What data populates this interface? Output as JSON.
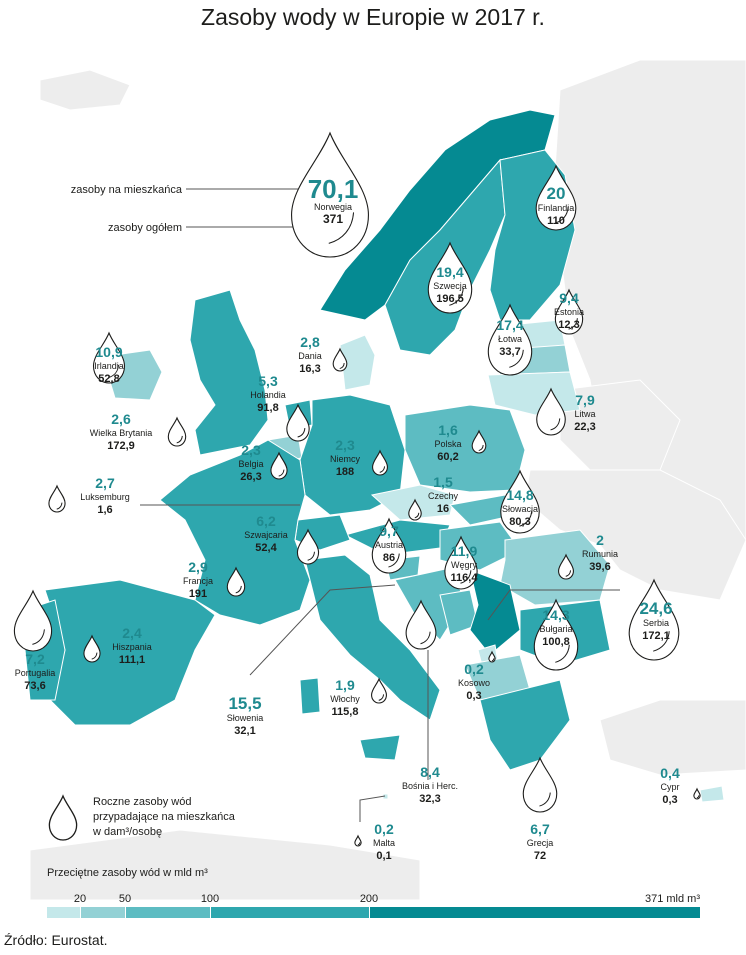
{
  "title": "Zasoby wody w Europie w 2017 r.",
  "source": "Źródło: Eurostat.",
  "colors": {
    "c1": "#c4e8ea",
    "c2": "#93d1d5",
    "c3": "#5dbcc2",
    "c4": "#2ea7ae",
    "c5": "#058a92",
    "land_gray": "#ededed",
    "number": "#1f8a8f"
  },
  "annotations": {
    "per_capita": "zasoby na mieszkańca",
    "total": "zasoby ogółem"
  },
  "legend": {
    "drop_text": [
      "Roczne zasoby wód",
      "przypadające na mieszkańca",
      "w dam³/osobę"
    ],
    "scale_title": "Przeciętne zasoby wód w mld m³",
    "ticks": [
      "20",
      "50",
      "100",
      "200",
      "371 mld m³"
    ]
  },
  "countries": [
    {
      "name": "Norwegia",
      "per_capita": "70,1",
      "total": "371"
    },
    {
      "name": "Finlandia",
      "per_capita": "20",
      "total": "110"
    },
    {
      "name": "Szwecja",
      "per_capita": "19,4",
      "total": "196,5"
    },
    {
      "name": "Estonia",
      "per_capita": "9,4",
      "total": "12,3"
    },
    {
      "name": "Łotwa",
      "per_capita": "17,4",
      "total": "33,7"
    },
    {
      "name": "Irlandia",
      "per_capita": "10,9",
      "total": "52,8"
    },
    {
      "name": "Dania",
      "per_capita": "2,8",
      "total": "16,3"
    },
    {
      "name": "Litwa",
      "per_capita": "7,9",
      "total": "22,3"
    },
    {
      "name": "Holandia",
      "per_capita": "5,3",
      "total": "91,8"
    },
    {
      "name": "Wielka Brytania",
      "per_capita": "2,6",
      "total": "172,9"
    },
    {
      "name": "Polska",
      "per_capita": "1,6",
      "total": "60,2"
    },
    {
      "name": "Belgia",
      "per_capita": "2,3",
      "total": "26,3"
    },
    {
      "name": "Niemcy",
      "per_capita": "2,3",
      "total": "188"
    },
    {
      "name": "Luksemburg",
      "per_capita": "2,7",
      "total": "1,6"
    },
    {
      "name": "Czechy",
      "per_capita": "1,5",
      "total": "16"
    },
    {
      "name": "Słowacja",
      "per_capita": "14,8",
      "total": "80,3"
    },
    {
      "name": "Szwajcaria",
      "per_capita": "6,2",
      "total": "52,4"
    },
    {
      "name": "Austria",
      "per_capita": "9,7",
      "total": "86"
    },
    {
      "name": "Węgry",
      "per_capita": "11,9",
      "total": "116,4"
    },
    {
      "name": "Rumunia",
      "per_capita": "2",
      "total": "39,6"
    },
    {
      "name": "Francja",
      "per_capita": "2,9",
      "total": "191"
    },
    {
      "name": "Serbia",
      "per_capita": "24,6",
      "total": "172,1"
    },
    {
      "name": "Hiszpania",
      "per_capita": "2,4",
      "total": "111,1"
    },
    {
      "name": "Bułgaria",
      "per_capita": "14,3",
      "total": "100,8"
    },
    {
      "name": "Portugalia",
      "per_capita": "7,2",
      "total": "73,6"
    },
    {
      "name": "Kosowo",
      "per_capita": "0,2",
      "total": "0,3"
    },
    {
      "name": "Słowenia",
      "per_capita": "15,5",
      "total": "32,1"
    },
    {
      "name": "Włochy",
      "per_capita": "1,9",
      "total": "115,8"
    },
    {
      "name": "Bośnia i Herc.",
      "per_capita": "8,4",
      "total": "32,3"
    },
    {
      "name": "Grecja",
      "per_capita": "6,7",
      "total": "72"
    },
    {
      "name": "Cypr",
      "per_capita": "0,4",
      "total": "0,3"
    },
    {
      "name": "Malta",
      "per_capita": "0,2",
      "total": "0,1"
    }
  ]
}
